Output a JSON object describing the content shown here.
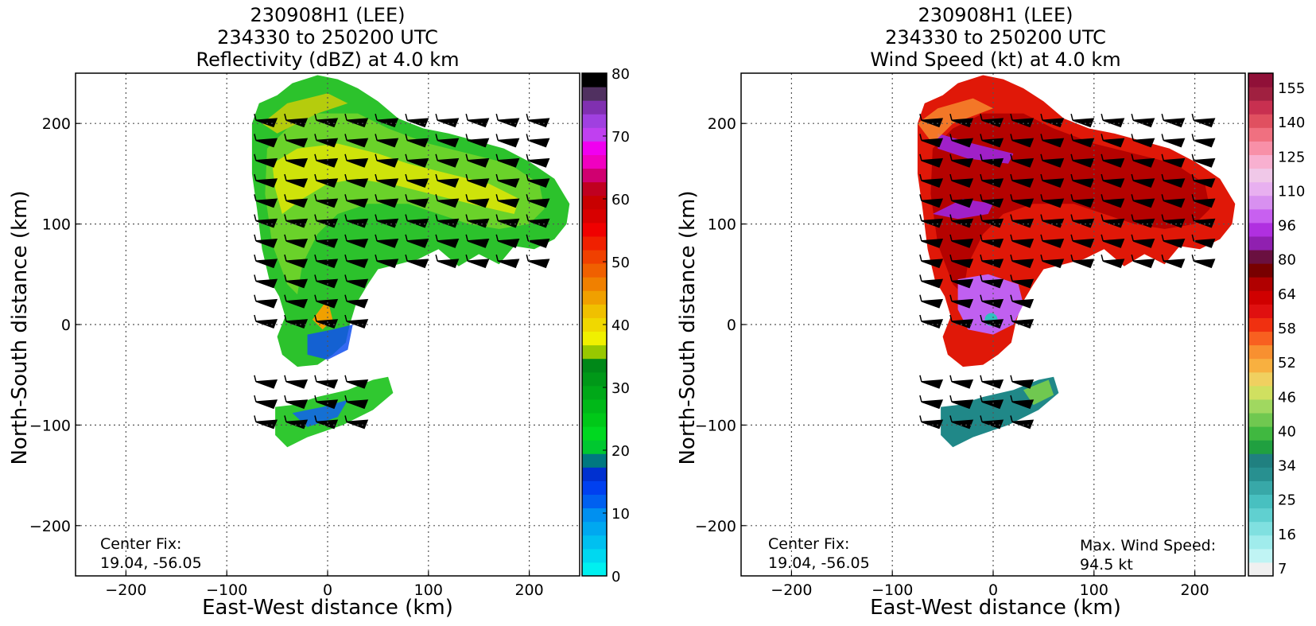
{
  "chart_data": [
    {
      "type": "heatmap",
      "title_lines": [
        "230908H1 (LEE)",
        "234330 to 250200 UTC",
        "Reflectivity (dBZ) at 4.0 km"
      ],
      "xlabel": "East-West distance (km)",
      "ylabel": "North-South distance (km)",
      "xlim": [
        -250,
        250
      ],
      "ylim": [
        -250,
        250
      ],
      "xticks": [
        -200,
        -100,
        0,
        100,
        200
      ],
      "yticks": [
        -200,
        -100,
        0,
        100,
        200
      ],
      "xtick_labels": [
        "−200",
        "−100",
        "0",
        "100",
        "200"
      ],
      "ytick_labels": [
        "−200",
        "−100",
        "0",
        "100",
        "200"
      ],
      "grid": true,
      "annotation_lines": [
        "Center Fix:",
        "19.04, -56.05"
      ],
      "colorbar": {
        "min": 0,
        "max": 80,
        "tick_values": [
          0,
          10,
          20,
          30,
          40,
          50,
          60,
          70,
          80
        ],
        "tick_labels": [
          "0",
          "10",
          "20",
          "30",
          "40",
          "50",
          "60",
          "70",
          "80"
        ],
        "colors": [
          "#00f0f0",
          "#00d8f0",
          "#00c0f0",
          "#00a8f0",
          "#0090f0",
          "#0060f0",
          "#0040f0",
          "#0030d0",
          "#007880",
          "#00c830",
          "#00d820",
          "#00c818",
          "#00b818",
          "#00a818",
          "#009818",
          "#008818",
          "#98c800",
          "#f0f000",
          "#f0d800",
          "#f0c000",
          "#f0a000",
          "#f08000",
          "#f06000",
          "#f04000",
          "#f02000",
          "#f00000",
          "#d80000",
          "#c80000",
          "#c00020",
          "#d00070",
          "#f000c0",
          "#f000f0",
          "#c040f0",
          "#a040e0",
          "#8030b0",
          "#503060",
          "#000000"
        ]
      },
      "regions_description_free": true,
      "echo_regions": [
        {
          "name": "main-arc",
          "x": [
            -75,
            -60,
            -30,
            0,
            40,
            90,
            140,
            190,
            230,
            240,
            220,
            170,
            130,
            100,
            60,
            40,
            25,
            10,
            -5,
            -20,
            -40,
            -55,
            -70,
            -80
          ],
          "y": [
            200,
            225,
            245,
            245,
            230,
            200,
            180,
            170,
            140,
            110,
            70,
            70,
            60,
            60,
            80,
            60,
            20,
            -10,
            -40,
            -45,
            -30,
            10,
            80,
            140
          ],
          "fill": "#22c022"
        },
        {
          "name": "south-band",
          "x": [
            -50,
            -20,
            20,
            60,
            65,
            40,
            0,
            -40,
            -55
          ],
          "y": [
            -85,
            -75,
            -65,
            -55,
            -70,
            -90,
            -110,
            -120,
            -100
          ],
          "fill": "#22c022"
        }
      ]
    },
    {
      "type": "heatmap",
      "title_lines": [
        "230908H1 (LEE)",
        "234330 to 250200 UTC",
        "Wind Speed (kt) at 4.0 km"
      ],
      "xlabel": "East-West distance (km)",
      "ylabel": "North-South distance (km)",
      "xlim": [
        -250,
        250
      ],
      "ylim": [
        -250,
        250
      ],
      "xticks": [
        -200,
        -100,
        0,
        100,
        200
      ],
      "yticks": [
        -200,
        -100,
        0,
        100,
        200
      ],
      "xtick_labels": [
        "−200",
        "−100",
        "0",
        "100",
        "200"
      ],
      "ytick_labels": [
        "−200",
        "−100",
        "0",
        "100",
        "200"
      ],
      "grid": true,
      "annotation_lines": [
        "Center Fix:",
        "19.04, -56.05"
      ],
      "max_wind_lines": [
        "Max. Wind Speed:",
        "94.5 kt"
      ],
      "colorbar": {
        "levels": 35,
        "tick_labels": [
          "7",
          "16",
          "25",
          "34",
          "40",
          "46",
          "52",
          "58",
          "64",
          "80",
          "96",
          "110",
          "125",
          "140",
          "155"
        ],
        "colors": [
          "#f0f0f0",
          "#c0f4f4",
          "#a0ecec",
          "#80e0e0",
          "#60d0d0",
          "#48c0c0",
          "#38a8a8",
          "#289090",
          "#208080",
          "#20a040",
          "#40b840",
          "#70c850",
          "#a0d860",
          "#d0e060",
          "#f0d060",
          "#f8b040",
          "#f89030",
          "#f86020",
          "#f03010",
          "#e01010",
          "#d00000",
          "#b00000",
          "#780000",
          "#6a1040",
          "#9020b0",
          "#b030e0",
          "#c860f0",
          "#d890f0",
          "#e8b0f0",
          "#f0c8e8",
          "#f8b0d0",
          "#f890a8",
          "#f07080",
          "#e05060",
          "#c83050",
          "#a02040",
          "#901038"
        ]
      }
    }
  ]
}
